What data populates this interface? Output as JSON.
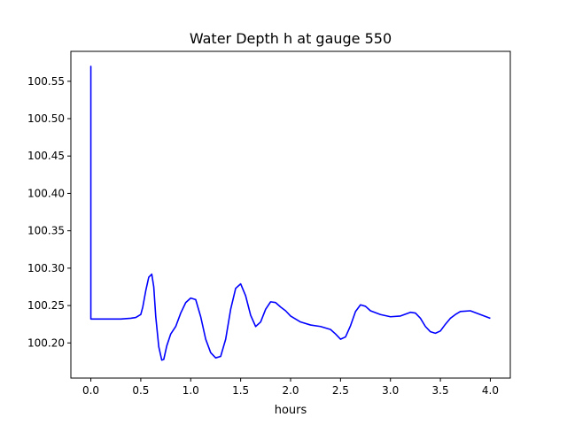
{
  "chart_data": {
    "type": "line",
    "title": "Water Depth h at gauge 550",
    "xlabel": "hours",
    "ylabel": "",
    "xlim": [
      -0.2,
      4.2
    ],
    "ylim": [
      100.153,
      100.59
    ],
    "grid": false,
    "x_ticks": [
      0.0,
      0.5,
      1.0,
      1.5,
      2.0,
      2.5,
      3.0,
      3.5,
      4.0
    ],
    "x_tick_labels": [
      "0.0",
      "0.5",
      "1.0",
      "1.5",
      "2.0",
      "2.5",
      "3.0",
      "3.5",
      "4.0"
    ],
    "y_ticks": [
      100.2,
      100.25,
      100.3,
      100.35,
      100.4,
      100.45,
      100.5,
      100.55
    ],
    "y_tick_labels": [
      "100.20",
      "100.25",
      "100.30",
      "100.35",
      "100.40",
      "100.45",
      "100.50",
      "100.55"
    ],
    "series": [
      {
        "color": "#0000ff",
        "x": [
          0.0,
          0.0,
          0.0,
          0.1,
          0.2,
          0.3,
          0.4,
          0.45,
          0.5,
          0.52,
          0.55,
          0.58,
          0.61,
          0.63,
          0.65,
          0.68,
          0.71,
          0.73,
          0.76,
          0.8,
          0.85,
          0.9,
          0.95,
          1.0,
          1.05,
          1.1,
          1.15,
          1.2,
          1.25,
          1.3,
          1.35,
          1.4,
          1.45,
          1.5,
          1.55,
          1.6,
          1.65,
          1.7,
          1.75,
          1.8,
          1.85,
          1.9,
          1.95,
          2.0,
          2.1,
          2.2,
          2.3,
          2.4,
          2.45,
          2.5,
          2.55,
          2.6,
          2.65,
          2.7,
          2.75,
          2.8,
          2.9,
          3.0,
          3.1,
          3.2,
          3.25,
          3.3,
          3.35,
          3.4,
          3.45,
          3.5,
          3.55,
          3.6,
          3.65,
          3.7,
          3.8,
          3.9,
          4.0
        ],
        "y": [
          100.568,
          100.57,
          100.232,
          100.232,
          100.232,
          100.232,
          100.233,
          100.234,
          100.238,
          100.248,
          100.27,
          100.288,
          100.292,
          100.275,
          100.235,
          100.195,
          100.177,
          100.178,
          100.196,
          100.212,
          100.222,
          100.24,
          100.254,
          100.26,
          100.258,
          100.235,
          100.205,
          100.187,
          100.18,
          100.182,
          100.205,
          100.245,
          100.273,
          100.279,
          100.263,
          100.237,
          100.222,
          100.228,
          100.245,
          100.255,
          100.254,
          100.248,
          100.243,
          100.236,
          100.228,
          100.224,
          100.222,
          100.218,
          100.212,
          100.205,
          100.208,
          100.223,
          100.242,
          100.251,
          100.249,
          100.243,
          100.238,
          100.235,
          100.236,
          100.241,
          100.24,
          100.233,
          100.222,
          100.215,
          100.213,
          100.216,
          100.225,
          100.233,
          100.238,
          100.242,
          100.243,
          100.238,
          100.233
        ]
      }
    ]
  }
}
